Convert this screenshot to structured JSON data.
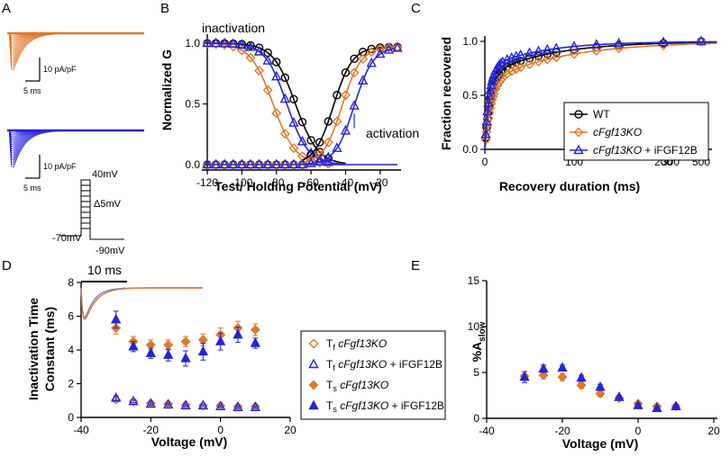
{
  "colors": {
    "wt": "#000000",
    "ko": "#E07828",
    "ifgf": "#2424D8"
  },
  "panels": {
    "a": {
      "label": "A",
      "scale_top": "10 pA/pF",
      "time_top": "5 ms",
      "scale_bottom": "10 pA/pF",
      "time_bottom": "5 ms",
      "protocol": {
        "top": "40mV",
        "step": "Δ5mV",
        "hold": "-70mV",
        "bottom": "-90mV"
      }
    },
    "b": {
      "label": "B",
      "label_inact": "inactivation",
      "label_act": "activation"
    },
    "c": {
      "label": "C"
    },
    "d": {
      "label": "D",
      "inset_scale": "10 ms"
    },
    "e": {
      "label": "E"
    }
  },
  "chart_data": [
    {
      "panel": "B",
      "type": "line",
      "xlabel": "Test/ Holding Potential (mV)",
      "ylabel": "Normalized G",
      "xlim": [
        -120,
        -10
      ],
      "ylim": [
        0,
        1
      ],
      "xticks": [
        -120,
        -100,
        -80,
        -60,
        -40,
        -20
      ],
      "yticks": [
        "0.0",
        "0.5",
        "1.0"
      ],
      "fits": {
        "inactivation": [
          {
            "series": "WT",
            "v_half": -69,
            "k": 6.5
          },
          {
            "series": "cFgf13KO",
            "v_half": -82,
            "k": 6.5
          },
          {
            "series": "cFgf13KO + iFGF12B",
            "v_half": -74,
            "k": 6.2
          }
        ],
        "activation": [
          {
            "series": "WT",
            "v_half": -47,
            "k": 5.5
          },
          {
            "series": "cFgf13KO",
            "v_half": -42,
            "k": 5.5
          },
          {
            "series": "cFgf13KO + iFGF12B",
            "v_half": -35,
            "k": 5.5
          }
        ]
      },
      "inactivation_x": [
        -120,
        -115,
        -110,
        -105,
        -100,
        -95,
        -90,
        -85,
        -80,
        -75,
        -70,
        -65,
        -60,
        -55,
        -50
      ],
      "activation_x": [
        -120,
        -115,
        -110,
        -105,
        -100,
        -95,
        -90,
        -85,
        -80,
        -75,
        -70,
        -65,
        -60,
        -55,
        -50,
        -45,
        -40,
        -35,
        -30,
        -25,
        -20,
        -15,
        -10
      ],
      "errorbars": [
        {
          "series": "cFgf13KO + iFGF12B",
          "x": -35,
          "y": 0.36,
          "err": 0.06
        }
      ]
    },
    {
      "panel": "C",
      "type": "line",
      "xlabel": "Recovery duration (ms)",
      "ylabel": "Fraction recovered",
      "xlim": [
        0,
        500
      ],
      "ylim": [
        0,
        1
      ],
      "xticks": [
        "0",
        "100",
        "200",
        "300",
        "500"
      ],
      "yticks": [
        "0.0",
        "0.5",
        "1.0"
      ],
      "x": [
        1,
        2,
        3,
        4,
        5,
        6,
        7,
        8,
        9,
        10,
        12,
        14,
        16,
        18,
        20,
        25,
        30,
        35,
        40,
        50,
        60,
        70,
        80,
        100,
        125,
        150,
        200,
        500
      ],
      "series": [
        {
          "name": "WT",
          "marker": "circle",
          "tau_fast": 6,
          "tau_slow": 70,
          "a_slow": 0.32
        },
        {
          "name": "cFgf13KO",
          "marker": "diamond",
          "tau_fast": 7,
          "tau_slow": 85,
          "a_slow": 0.38
        },
        {
          "name": "cFgf13KO + iFGF12B",
          "marker": "triangle",
          "tau_fast": 5,
          "tau_slow": 60,
          "a_slow": 0.25
        }
      ],
      "legend": [
        {
          "text": "WT",
          "italic": "",
          "suffix": ""
        },
        {
          "text": "",
          "italic": "cFgf13KO",
          "suffix": ""
        },
        {
          "text": "",
          "italic": "cFgf13KO",
          "suffix": " + iFGF12B"
        }
      ]
    },
    {
      "panel": "D",
      "type": "scatter",
      "xlabel": "Voltage (mV)",
      "ylabel": [
        "Inactivation Time",
        "Constant (ms)"
      ],
      "xlim": [
        -40,
        20
      ],
      "ylim": [
        0,
        8
      ],
      "xticks": [
        -40,
        -20,
        0,
        20
      ],
      "yticks": [
        0,
        2,
        4,
        6,
        8
      ],
      "x": [
        -30,
        -25,
        -20,
        -15,
        -10,
        -5,
        0,
        5,
        10
      ],
      "series": [
        {
          "name": "Tf cFgf13KO",
          "marker": "diamond-open",
          "color": "ko",
          "values": [
            1.05,
            0.95,
            0.85,
            0.8,
            0.75,
            0.7,
            0.7,
            0.65,
            0.65
          ],
          "err": [
            0.1,
            0.08,
            0.07,
            0.06,
            0.06,
            0.06,
            0.06,
            0.06,
            0.06
          ]
        },
        {
          "name": "Tf cFgf13KO + iFGF12B",
          "marker": "triangle-open",
          "color": "ifgf",
          "values": [
            1.15,
            0.95,
            0.8,
            0.75,
            0.7,
            0.7,
            0.65,
            0.6,
            0.6
          ],
          "err": [
            0.12,
            0.08,
            0.07,
            0.06,
            0.06,
            0.06,
            0.06,
            0.06,
            0.06
          ]
        },
        {
          "name": "Ts cFgf13KO",
          "marker": "diamond",
          "color": "ko",
          "values": [
            5.3,
            4.5,
            4.3,
            4.3,
            4.5,
            4.6,
            4.9,
            5.3,
            5.2
          ],
          "err": [
            0.35,
            0.3,
            0.3,
            0.3,
            0.3,
            0.35,
            0.4,
            0.4,
            0.35
          ]
        },
        {
          "name": "Ts cFgf13KO + iFGF12B",
          "marker": "triangle",
          "color": "ifgf",
          "values": [
            5.8,
            4.2,
            3.8,
            3.7,
            3.5,
            3.9,
            4.5,
            4.9,
            4.4
          ],
          "err": [
            0.5,
            0.3,
            0.3,
            0.35,
            0.45,
            0.5,
            0.5,
            0.45,
            0.3
          ]
        }
      ],
      "legend": [
        {
          "sym": "T",
          "sub": "f",
          "italic": "cFgf13KO",
          "suffix": ""
        },
        {
          "sym": "T",
          "sub": "f",
          "italic": "cFgf13KO",
          "suffix": " + iFGF12B"
        },
        {
          "sym": "T",
          "sub": "s",
          "italic": "cFgf13KO",
          "suffix": ""
        },
        {
          "sym": "T",
          "sub": "s",
          "italic": "cFgf13KO",
          "suffix": " + iFGF12B"
        }
      ]
    },
    {
      "panel": "E",
      "type": "scatter",
      "xlabel": "Voltage (mV)",
      "ylabel": "%A",
      "ylabel_sub": "slow",
      "xlim": [
        -40,
        20
      ],
      "ylim": [
        0,
        15
      ],
      "xticks": [
        -40,
        -20,
        0,
        20
      ],
      "yticks": [
        0,
        5,
        10,
        15
      ],
      "x": [
        -30,
        -25,
        -20,
        -15,
        -10,
        -5,
        0,
        5,
        10
      ],
      "series": [
        {
          "name": "cFgf13KO",
          "marker": "diamond",
          "color": "ko",
          "values": [
            4.6,
            4.7,
            4.5,
            3.6,
            2.7,
            2.2,
            1.6,
            1.3,
            1.3
          ],
          "err": [
            0.5,
            0.4,
            0.4,
            0.3,
            0.3,
            0.2,
            0.2,
            0.2,
            0.2
          ]
        },
        {
          "name": "cFgf13KO + iFGF12B",
          "marker": "triangle",
          "color": "ifgf",
          "values": [
            4.5,
            5.4,
            5.5,
            4.4,
            3.4,
            2.3,
            1.4,
            1.1,
            1.3
          ],
          "err": [
            0.6,
            0.4,
            0.3,
            0.3,
            0.3,
            0.2,
            0.2,
            0.2,
            0.2
          ]
        }
      ]
    }
  ]
}
